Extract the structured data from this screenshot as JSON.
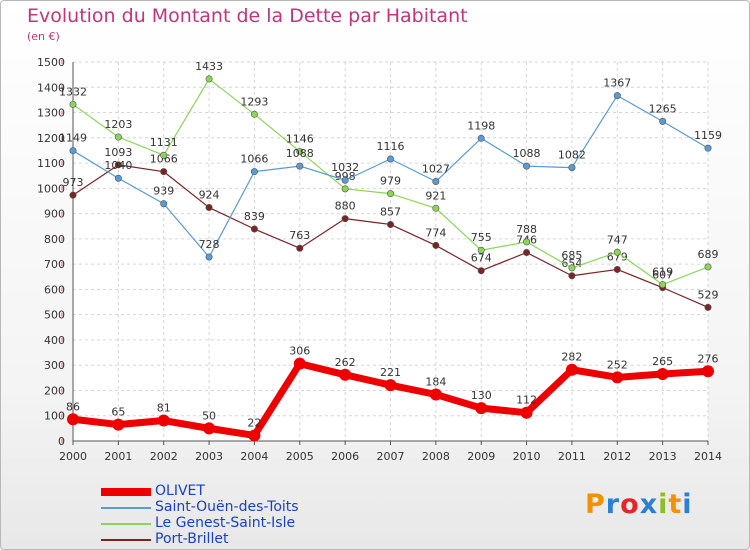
{
  "chart_data": {
    "type": "line",
    "title": "Evolution du Montant de la Dette par Habitant",
    "subtitle": "(en €)",
    "x": [
      "2000",
      "2001",
      "2002",
      "2003",
      "2004",
      "2005",
      "2006",
      "2007",
      "2008",
      "2009",
      "2010",
      "2011",
      "2012",
      "2013",
      "2014"
    ],
    "ylim": [
      0,
      1500
    ],
    "yticks": [
      "0",
      "100",
      "200",
      "300",
      "400",
      "500",
      "600",
      "700",
      "800",
      "900",
      "1000",
      "1100",
      "1200",
      "1300",
      "1400",
      "1500"
    ],
    "grid": true,
    "legend_position": "bottom-left",
    "series": [
      {
        "name": "OLIVET",
        "color": "#ee0000",
        "values": [
          86,
          65,
          81,
          50,
          22,
          306,
          262,
          221,
          184,
          130,
          112,
          282,
          252,
          265,
          276
        ],
        "labels": [
          "86",
          "65",
          "81",
          "50",
          "22",
          "306",
          "262",
          "221",
          "184",
          "130",
          "112",
          "282",
          "252",
          "265",
          "276"
        ]
      },
      {
        "name": "Saint-Ouën-des-Toits",
        "color": "#5a9ad5",
        "values": [
          1149,
          1040,
          939,
          728,
          1066,
          1088,
          1032,
          1116,
          1027,
          1198,
          1088,
          1082,
          1367,
          1265,
          1159
        ],
        "labels": [
          "1149",
          "1040",
          "939",
          "728",
          "1066",
          "1088",
          "1032",
          "1116",
          "1027",
          "1198",
          "1088",
          "1082",
          "1367",
          "1265",
          "1159"
        ]
      },
      {
        "name": "Le Genest-Saint-Isle",
        "color": "#8cd45a",
        "values": [
          1332,
          1203,
          1131,
          1433,
          1293,
          1146,
          998,
          979,
          921,
          755,
          788,
          685,
          747,
          619,
          689
        ],
        "labels": [
          "1332",
          "1203",
          "1131",
          "1433",
          "1293",
          "1146",
          "998",
          "979",
          "921",
          "755",
          "788",
          "685",
          "747",
          "619",
          "689"
        ]
      },
      {
        "name": "Port-Brillet",
        "color": "#7a2424",
        "values": [
          973,
          1093,
          1066,
          924,
          839,
          763,
          880,
          857,
          774,
          674,
          746,
          654,
          679,
          607,
          529
        ],
        "labels": [
          "973",
          "1093",
          "1066",
          "924",
          "839",
          "763",
          "880",
          "857",
          "774",
          "674",
          "746",
          "654",
          "679",
          "607",
          "529"
        ]
      }
    ]
  },
  "logo": {
    "text": "Proxiti",
    "colors": [
      "#f39200",
      "#2a7fd6",
      "#e3262b",
      "#2a7fd6",
      "#8cbf26",
      "#f39200",
      "#2a7fd6"
    ]
  }
}
